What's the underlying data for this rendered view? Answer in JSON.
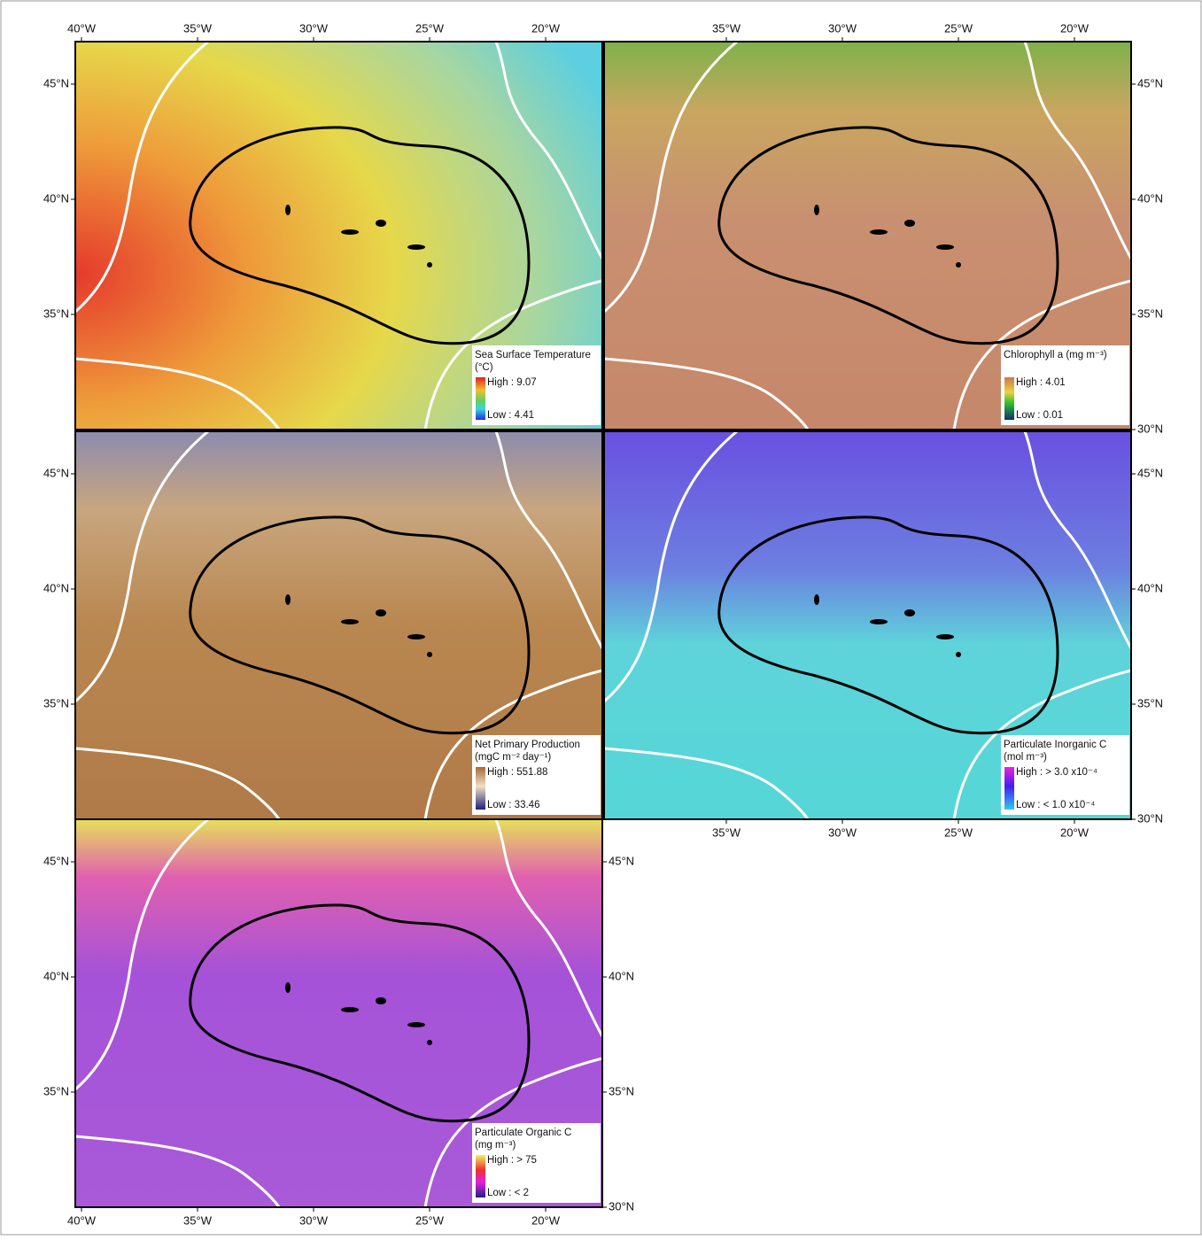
{
  "axes": {
    "lon_labels": [
      "40°W",
      "35°W",
      "30°W",
      "25°W",
      "20°W"
    ],
    "lat_labels": [
      "45°N",
      "40°N",
      "35°N",
      "30°N"
    ]
  },
  "panels": [
    {
      "title": "Sea Surface Temperature",
      "unit": "(°C)",
      "high": "High : 9.07",
      "low": "Low : 4.41"
    },
    {
      "title": "Chlorophyll a (mg m⁻³)",
      "high": "High : 4.01",
      "low": "Low : 0.01"
    },
    {
      "title": "Net Primary Production",
      "unit": "(mgC m⁻² day⁻¹)",
      "high": "High : 551.88",
      "low": "Low : 33.46"
    },
    {
      "title": "Particulate Inorganic C",
      "unit": "(mol m⁻³)",
      "high": "High : > 3.0 x10⁻⁴",
      "low": "Low :  < 1.0 x10⁻⁴"
    },
    {
      "title": "Particulate Organic C",
      "unit": "(mg m⁻³)",
      "high": "High : > 75",
      "low": "Low :  < 2"
    }
  ]
}
